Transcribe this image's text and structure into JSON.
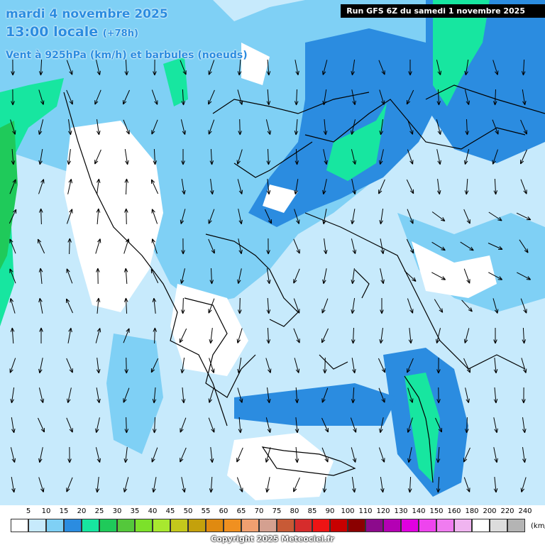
{
  "header": {
    "date": "mardi 4 novembre 2025",
    "time": "13:00 locale",
    "lead": "(+78h)",
    "variable": "Vent à 925hPa (km/h) et barbules (noeuds)",
    "run": "Run GFS 6Z du samedi 1 novembre 2025"
  },
  "legend": {
    "labels": [
      "5",
      "10",
      "15",
      "20",
      "25",
      "30",
      "35",
      "40",
      "45",
      "50",
      "55",
      "60",
      "65",
      "70",
      "75",
      "80",
      "85",
      "90",
      "100",
      "110",
      "120",
      "130",
      "140",
      "150",
      "160",
      "180",
      "200",
      "220",
      "240"
    ],
    "colors": [
      "#ffffff",
      "#c7eafc",
      "#7fd0f5",
      "#2b8ce0",
      "#17e6a0",
      "#1fca5a",
      "#54c83b",
      "#7ce12a",
      "#a8e82f",
      "#c4c81c",
      "#c4a10c",
      "#e08a10",
      "#f09020",
      "#f0a070",
      "#d4a090",
      "#c85a36",
      "#d62c2c",
      "#ee1414",
      "#c80000",
      "#8b0000",
      "#8c0a8c",
      "#b400b4",
      "#e000e0",
      "#ee44ee",
      "#f07cf0",
      "#f0b4f0",
      "#ffffff",
      "#dcdcdc",
      "#b4b4b4"
    ],
    "units": "(km/h)"
  },
  "copyright": "Copyright 2025 Meteociel.fr"
}
